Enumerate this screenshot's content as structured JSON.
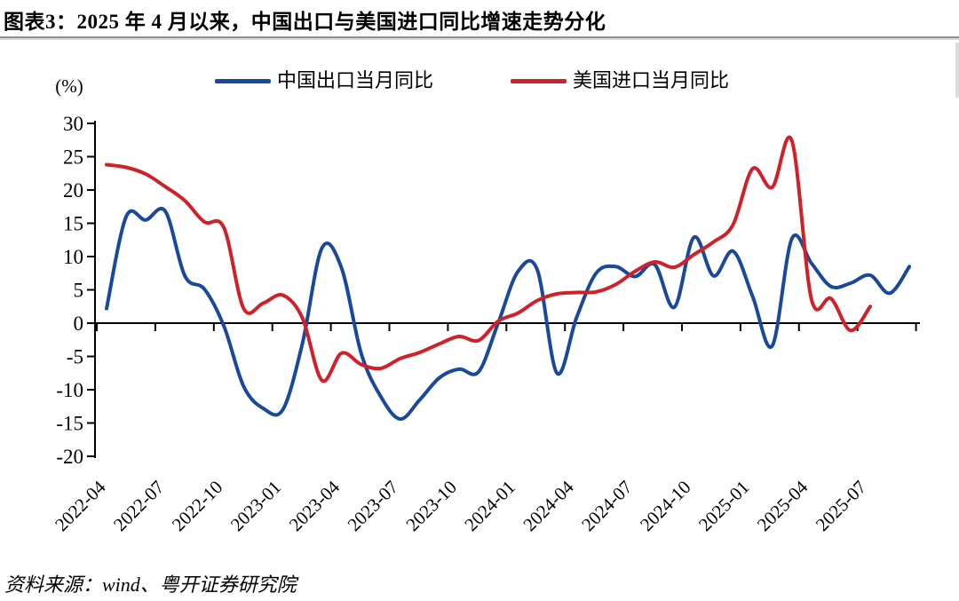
{
  "header": {
    "title": "图表3：2025 年 4 月以来，中国出口与美国进口同比增速走势分化"
  },
  "legend": {
    "items": [
      {
        "key": "china_export",
        "label": "中国出口当月同比",
        "color": "#1a499c"
      },
      {
        "key": "us_import",
        "label": "美国进口当月同比",
        "color": "#d02028"
      }
    ]
  },
  "footer": {
    "source": "资料来源：wind、粤开证券研究院"
  },
  "chart_data": {
    "type": "line",
    "unit_label": "(%)",
    "smoothing": true,
    "grid": false,
    "legend_position": "top",
    "ylim": [
      -20,
      30
    ],
    "y_ticks": [
      30,
      25,
      20,
      15,
      10,
      5,
      0,
      -5,
      -10,
      -15,
      -20
    ],
    "x_tick_labels": [
      "2022-04",
      "2022-07",
      "2022-10",
      "2023-01",
      "2023-04",
      "2023-07",
      "2023-10",
      "2024-01",
      "2024-04",
      "2024-07",
      "2024-10",
      "2025-01",
      "2025-04",
      "2025-07"
    ],
    "x": [
      "2022-04",
      "2022-05",
      "2022-06",
      "2022-07",
      "2022-08",
      "2022-09",
      "2022-10",
      "2022-11",
      "2022-12",
      "2023-01",
      "2023-02",
      "2023-03",
      "2023-04",
      "2023-05",
      "2023-06",
      "2023-07",
      "2023-08",
      "2023-09",
      "2023-10",
      "2023-11",
      "2023-12",
      "2024-01",
      "2024-02",
      "2024-03",
      "2024-04",
      "2024-05",
      "2024-06",
      "2024-07",
      "2024-08",
      "2024-09",
      "2024-10",
      "2024-11",
      "2024-12",
      "2025-01",
      "2025-02",
      "2025-03",
      "2025-04",
      "2025-05",
      "2025-06",
      "2025-07",
      "2025-08",
      "2025-09"
    ],
    "series": [
      {
        "key": "china_export",
        "name": "中国出口当月同比",
        "color": "#1a499c",
        "values": [
          2.2,
          16.0,
          15.5,
          16.8,
          7.1,
          5.1,
          -0.5,
          -9.5,
          -12.8,
          -13.0,
          -3.1,
          11.3,
          8.3,
          -4.5,
          -11.0,
          -14.4,
          -11.5,
          -8.2,
          -6.9,
          -7.3,
          0.0,
          7.7,
          8.0,
          -7.5,
          0.8,
          7.5,
          8.5,
          7.0,
          8.8,
          2.4,
          12.9,
          7.1,
          10.8,
          4.0,
          -3.4,
          12.7,
          9.0,
          5.5,
          6.0,
          7.2,
          4.5,
          8.5
        ]
      },
      {
        "key": "us_import",
        "name": "美国进口当月同比",
        "color": "#d02028",
        "values": [
          23.8,
          23.4,
          22.4,
          20.5,
          18.4,
          15.2,
          14.3,
          2.2,
          3.0,
          4.2,
          0.8,
          -8.6,
          -4.5,
          -6.2,
          -6.8,
          -5.3,
          -4.4,
          -3.1,
          -2.0,
          -2.6,
          0.3,
          1.5,
          3.4,
          4.4,
          4.6,
          4.7,
          5.8,
          7.8,
          9.2,
          8.4,
          10.3,
          12.2,
          14.8,
          23.2,
          20.4,
          27.4,
          3.6,
          3.7,
          -1.1,
          2.5
        ]
      }
    ]
  }
}
